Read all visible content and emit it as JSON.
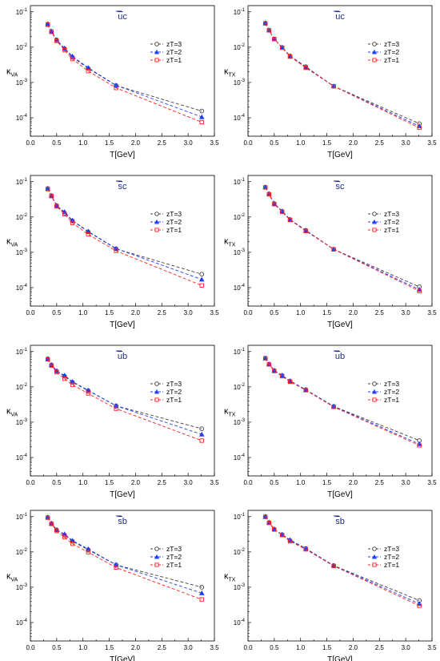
{
  "series_colors": {
    "zT=3": "#404040",
    "zT=2": "#1f3fff",
    "zT=1": "#ff2020"
  },
  "title_color": "#1f2a8c",
  "chart_data": [
    {
      "type": "line",
      "title_bar": "u",
      "title_rest": "c",
      "ylabel_main": "κ",
      "ylabel_sub": "VA",
      "xlabel": "T[GeV]",
      "xlim": [
        0.0,
        3.5
      ],
      "ylim": [
        3e-05,
        0.15
      ],
      "yscale": "log",
      "xticks": [
        "0.0",
        "0.5",
        "1.0",
        "1.5",
        "2.0",
        "2.5",
        "3.0",
        "3.5"
      ],
      "yticks": [
        "10-4",
        "10-3",
        "10-2",
        "10-1"
      ],
      "legend_position": "right",
      "x": [
        0.33,
        0.4,
        0.5,
        0.65,
        0.8,
        1.1,
        1.63,
        3.26
      ],
      "series": [
        {
          "name": "zT=3",
          "marker": "circle",
          "values": [
            0.045,
            0.028,
            0.016,
            0.009,
            0.0052,
            0.0025,
            0.00082,
            0.000155
          ]
        },
        {
          "name": "zT=2",
          "marker": "triangle",
          "values": [
            0.045,
            0.028,
            0.016,
            0.0093,
            0.0055,
            0.0026,
            0.00083,
            0.000105
          ]
        },
        {
          "name": "zT=1",
          "marker": "square",
          "values": [
            0.043,
            0.027,
            0.015,
            0.0082,
            0.0046,
            0.0021,
            0.0007,
            7.5e-05
          ]
        }
      ]
    },
    {
      "type": "line",
      "title_bar": "u",
      "title_rest": "c",
      "ylabel_main": "κ",
      "ylabel_sub": "TX",
      "xlabel": "T[GeV]",
      "xlim": [
        0.0,
        3.5
      ],
      "ylim": [
        3e-05,
        0.15
      ],
      "yscale": "log",
      "xticks": [
        "0.0",
        "0.5",
        "1.0",
        "1.5",
        "2.0",
        "2.5",
        "3.0",
        "3.5"
      ],
      "yticks": [
        "10-4",
        "10-3",
        "10-2",
        "10-1"
      ],
      "legend_position": "right",
      "x": [
        0.33,
        0.4,
        0.5,
        0.65,
        0.8,
        1.1,
        1.63,
        3.26
      ],
      "series": [
        {
          "name": "zT=3",
          "marker": "circle",
          "values": [
            0.048,
            0.03,
            0.017,
            0.0098,
            0.0056,
            0.0028,
            0.00078,
            6.8e-05
          ]
        },
        {
          "name": "zT=2",
          "marker": "triangle",
          "values": [
            0.048,
            0.03,
            0.017,
            0.0098,
            0.0056,
            0.0027,
            0.00078,
            5.8e-05
          ]
        },
        {
          "name": "zT=1",
          "marker": "square",
          "values": [
            0.047,
            0.03,
            0.017,
            0.0096,
            0.0054,
            0.0026,
            0.00078,
            5.2e-05
          ]
        }
      ]
    },
    {
      "type": "line",
      "title_bar": "s",
      "title_rest": "c",
      "ylabel_main": "κ",
      "ylabel_sub": "VA",
      "xlabel": "T[GeV]",
      "xlim": [
        0.0,
        3.5
      ],
      "ylim": [
        3e-05,
        0.15
      ],
      "yscale": "log",
      "xticks": [
        "0.0",
        "0.5",
        "1.0",
        "1.5",
        "2.0",
        "2.5",
        "3.0",
        "3.5"
      ],
      "yticks": [
        "10-4",
        "10-3",
        "10-2",
        "10-1"
      ],
      "legend_position": "right",
      "x": [
        0.33,
        0.4,
        0.5,
        0.65,
        0.8,
        1.1,
        1.63,
        3.26
      ],
      "series": [
        {
          "name": "zT=3",
          "marker": "circle",
          "values": [
            0.064,
            0.04,
            0.021,
            0.013,
            0.0078,
            0.0038,
            0.00125,
            0.00024
          ]
        },
        {
          "name": "zT=2",
          "marker": "triangle",
          "values": [
            0.064,
            0.04,
            0.021,
            0.014,
            0.008,
            0.0039,
            0.00128,
            0.00017
          ]
        },
        {
          "name": "zT=1",
          "marker": "square",
          "values": [
            0.062,
            0.039,
            0.02,
            0.012,
            0.0068,
            0.0032,
            0.0011,
            0.000115
          ]
        }
      ]
    },
    {
      "type": "line",
      "title_bar": "s",
      "title_rest": "c",
      "ylabel_main": "κ",
      "ylabel_sub": "TX",
      "xlabel": "T[GeV]",
      "xlim": [
        0.0,
        3.5
      ],
      "ylim": [
        3e-05,
        0.15
      ],
      "yscale": "log",
      "xticks": [
        "0.0",
        "0.5",
        "1.0",
        "1.5",
        "2.0",
        "2.5",
        "3.0",
        "3.5"
      ],
      "yticks": [
        "10-4",
        "10-3",
        "10-2",
        "10-1"
      ],
      "legend_position": "right",
      "x": [
        0.33,
        0.4,
        0.5,
        0.65,
        0.8,
        1.1,
        1.63,
        3.26
      ],
      "series": [
        {
          "name": "zT=3",
          "marker": "circle",
          "values": [
            0.07,
            0.045,
            0.024,
            0.0145,
            0.0085,
            0.0042,
            0.00122,
            0.000105
          ]
        },
        {
          "name": "zT=2",
          "marker": "triangle",
          "values": [
            0.07,
            0.045,
            0.024,
            0.0145,
            0.0085,
            0.0041,
            0.00122,
            8.8e-05
          ]
        },
        {
          "name": "zT=1",
          "marker": "square",
          "values": [
            0.069,
            0.044,
            0.023,
            0.014,
            0.0082,
            0.004,
            0.00121,
            8e-05
          ]
        }
      ]
    },
    {
      "type": "line",
      "title_bar": "u",
      "title_rest": "b",
      "ylabel_main": "κ",
      "ylabel_sub": "VA",
      "xlabel": "T[GeV]",
      "xlim": [
        0.0,
        3.5
      ],
      "ylim": [
        3e-05,
        0.15
      ],
      "yscale": "log",
      "xticks": [
        "0.0",
        "0.5",
        "1.0",
        "1.5",
        "2.0",
        "2.5",
        "3.0",
        "3.5"
      ],
      "yticks": [
        "10-4",
        "10-3",
        "10-2",
        "10-1"
      ],
      "legend_position": "right",
      "x": [
        0.33,
        0.4,
        0.5,
        0.65,
        0.8,
        1.1,
        1.63,
        3.26
      ],
      "series": [
        {
          "name": "zT=3",
          "marker": "circle",
          "values": [
            0.062,
            0.042,
            0.028,
            0.02,
            0.0135,
            0.0078,
            0.0029,
            0.00065
          ]
        },
        {
          "name": "zT=2",
          "marker": "triangle",
          "values": [
            0.062,
            0.042,
            0.028,
            0.021,
            0.014,
            0.008,
            0.0029,
            0.00045
          ]
        },
        {
          "name": "zT=1",
          "marker": "square",
          "values": [
            0.06,
            0.04,
            0.026,
            0.017,
            0.0115,
            0.0065,
            0.0024,
            0.0003
          ]
        }
      ]
    },
    {
      "type": "line",
      "title_bar": "u",
      "title_rest": "b",
      "ylabel_main": "κ",
      "ylabel_sub": "TX",
      "xlabel": "T[GeV]",
      "xlim": [
        0.0,
        3.5
      ],
      "ylim": [
        3e-05,
        0.15
      ],
      "yscale": "log",
      "xticks": [
        "0.0",
        "0.5",
        "1.0",
        "1.5",
        "2.0",
        "2.5",
        "3.0",
        "3.5"
      ],
      "yticks": [
        "10-4",
        "10-3",
        "10-2",
        "10-1"
      ],
      "legend_position": "right",
      "x": [
        0.33,
        0.4,
        0.5,
        0.65,
        0.8,
        1.1,
        1.63,
        3.26
      ],
      "series": [
        {
          "name": "zT=3",
          "marker": "circle",
          "values": [
            0.065,
            0.044,
            0.029,
            0.021,
            0.0145,
            0.0083,
            0.0028,
            0.0003
          ]
        },
        {
          "name": "zT=2",
          "marker": "triangle",
          "values": [
            0.065,
            0.044,
            0.029,
            0.021,
            0.0148,
            0.0083,
            0.0028,
            0.00024
          ]
        },
        {
          "name": "zT=1",
          "marker": "square",
          "values": [
            0.064,
            0.043,
            0.028,
            0.02,
            0.014,
            0.008,
            0.0027,
            0.00022
          ]
        }
      ]
    },
    {
      "type": "line",
      "title_bar": "s",
      "title_rest": "b",
      "ylabel_main": "κ",
      "ylabel_sub": "VA",
      "xlabel": "T[GeV]",
      "xlim": [
        0.0,
        3.5
      ],
      "ylim": [
        3e-05,
        0.15
      ],
      "yscale": "log",
      "xticks": [
        "0.0",
        "0.5",
        "1.0",
        "1.5",
        "2.0",
        "2.5",
        "3.0",
        "3.5"
      ],
      "yticks": [
        "10-4",
        "10-3",
        "10-2",
        "10-1"
      ],
      "legend_position": "right",
      "x": [
        0.33,
        0.4,
        0.5,
        0.65,
        0.8,
        1.1,
        1.63,
        3.26
      ],
      "series": [
        {
          "name": "zT=3",
          "marker": "circle",
          "values": [
            0.095,
            0.064,
            0.042,
            0.03,
            0.02,
            0.0115,
            0.0043,
            0.001
          ]
        },
        {
          "name": "zT=2",
          "marker": "triangle",
          "values": [
            0.095,
            0.064,
            0.042,
            0.032,
            0.021,
            0.012,
            0.0043,
            0.00068
          ]
        },
        {
          "name": "zT=1",
          "marker": "square",
          "values": [
            0.093,
            0.062,
            0.039,
            0.026,
            0.017,
            0.0098,
            0.0036,
            0.00045
          ]
        }
      ]
    },
    {
      "type": "line",
      "title_bar": "s",
      "title_rest": "b",
      "ylabel_main": "κ",
      "ylabel_sub": "TX",
      "xlabel": "T[GeV]",
      "xlim": [
        0.0,
        3.5
      ],
      "ylim": [
        3e-05,
        0.15
      ],
      "yscale": "log",
      "xticks": [
        "0.0",
        "0.5",
        "1.0",
        "1.5",
        "2.0",
        "2.5",
        "3.0",
        "3.5"
      ],
      "yticks": [
        "10-4",
        "10-3",
        "10-2",
        "10-1"
      ],
      "legend_position": "right",
      "x": [
        0.33,
        0.4,
        0.5,
        0.65,
        0.8,
        1.1,
        1.63,
        3.26
      ],
      "series": [
        {
          "name": "zT=3",
          "marker": "circle",
          "values": [
            0.1,
            0.068,
            0.044,
            0.031,
            0.021,
            0.0125,
            0.0041,
            0.00042
          ]
        },
        {
          "name": "zT=2",
          "marker": "triangle",
          "values": [
            0.1,
            0.068,
            0.044,
            0.031,
            0.022,
            0.0125,
            0.0041,
            0.00034
          ]
        },
        {
          "name": "zT=1",
          "marker": "square",
          "values": [
            0.098,
            0.066,
            0.043,
            0.03,
            0.02,
            0.0118,
            0.004,
            0.0003
          ]
        }
      ]
    }
  ]
}
